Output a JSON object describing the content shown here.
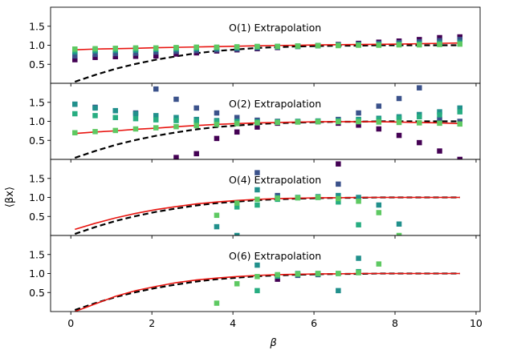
{
  "chart_data": {
    "type": "scatter",
    "xlabel": "β",
    "ylabel": "⟨βx⟩",
    "xlim": [
      -0.5,
      10.1
    ],
    "ylim": [
      0,
      2
    ],
    "xticks": [
      0,
      2,
      4,
      6,
      8,
      10
    ],
    "xtick_labels": [
      "0",
      "2",
      "4",
      "6",
      "8",
      "10"
    ],
    "yticks": [
      0.5,
      1.0,
      1.5
    ],
    "ytick_labels": [
      "0.5",
      "1.0",
      "1.5"
    ],
    "colors": {
      "exact_curve": "#000000",
      "fit_curve": "#e8140f",
      "order_palette": [
        "#440154",
        "#3b528b",
        "#21908c",
        "#27ad81",
        "#5ec962"
      ]
    },
    "series_legend_note": "colored squares: successive approximation orders (dark purple = lowest, light green = highest)",
    "panels": [
      {
        "title": "O(1) Extrapolation",
        "curve": [
          [
            0.1,
            0.88
          ],
          [
            0.6,
            0.9
          ],
          [
            1.1,
            0.91
          ],
          [
            1.6,
            0.92
          ],
          [
            2.1,
            0.935
          ],
          [
            2.6,
            0.945
          ],
          [
            3.1,
            0.955
          ],
          [
            3.6,
            0.965
          ],
          [
            4.1,
            0.975
          ],
          [
            4.6,
            0.985
          ],
          [
            5.1,
            0.995
          ],
          [
            5.6,
            1.0
          ],
          [
            6.1,
            1.01
          ],
          [
            6.6,
            1.015
          ],
          [
            7.1,
            1.02
          ],
          [
            7.6,
            1.025
          ],
          [
            8.1,
            1.03
          ],
          [
            8.6,
            1.04
          ],
          [
            9.1,
            1.05
          ],
          [
            9.6,
            1.06
          ]
        ],
        "points": [
          {
            "x": [
              0.1,
              0.6,
              1.1,
              1.6,
              2.1,
              2.6,
              3.1,
              3.6,
              4.1,
              4.6,
              5.1,
              5.6,
              6.1,
              6.6,
              7.1,
              7.6,
              8.1,
              8.6,
              9.1,
              9.6
            ],
            "y": [
              0.62,
              0.68,
              0.7,
              0.71,
              0.72,
              0.77,
              0.8,
              0.85,
              0.88,
              0.91,
              0.94,
              0.97,
              0.99,
              1.02,
              1.05,
              1.08,
              1.11,
              1.15,
              1.2,
              1.22
            ]
          },
          {
            "x": [
              0.1,
              0.6,
              1.1,
              1.6,
              2.1,
              2.6,
              3.1,
              3.6,
              4.1,
              4.6,
              5.1,
              5.6,
              6.1,
              6.6,
              7.1,
              7.6,
              8.1,
              8.6,
              9.1,
              9.6
            ],
            "y": [
              0.72,
              0.76,
              0.78,
              0.79,
              0.82,
              0.84,
              0.86,
              0.88,
              0.9,
              0.93,
              0.95,
              0.97,
              0.99,
              1.01,
              1.03,
              1.05,
              1.07,
              1.09,
              1.12,
              1.15
            ]
          },
          {
            "x": [
              0.1,
              0.6,
              1.1,
              1.6,
              2.1,
              2.6,
              3.1,
              3.6,
              4.1,
              4.6,
              5.1,
              5.6,
              6.1,
              6.6,
              7.1,
              7.6,
              8.1,
              8.6,
              9.1,
              9.6
            ],
            "y": [
              0.82,
              0.85,
              0.86,
              0.87,
              0.89,
              0.9,
              0.91,
              0.92,
              0.93,
              0.95,
              0.96,
              0.97,
              0.99,
              1.0,
              1.01,
              1.02,
              1.03,
              1.04,
              1.06,
              1.08
            ]
          },
          {
            "x": [
              0.1,
              0.6,
              1.1,
              1.6,
              2.1,
              2.6,
              3.1,
              3.6,
              4.1,
              4.6,
              5.1,
              5.6,
              6.1,
              6.6,
              7.1,
              7.6,
              8.1,
              8.6,
              9.1,
              9.6
            ],
            "y": [
              0.86,
              0.88,
              0.89,
              0.9,
              0.91,
              0.92,
              0.93,
              0.94,
              0.95,
              0.96,
              0.97,
              0.98,
              0.99,
              1.0,
              1.01,
              1.01,
              1.02,
              1.02,
              1.03,
              1.04
            ]
          },
          {
            "x": [
              0.1,
              0.6,
              1.1,
              1.6,
              2.1,
              2.6,
              3.1,
              3.6,
              4.1,
              4.6,
              5.1,
              5.6,
              6.1,
              6.6,
              7.1,
              7.6,
              8.1,
              8.6,
              9.1,
              9.6
            ],
            "y": [
              0.9,
              0.91,
              0.92,
              0.93,
              0.93,
              0.94,
              0.95,
              0.95,
              0.96,
              0.97,
              0.97,
              0.98,
              0.99,
              0.99,
              1.0,
              1.0,
              1.01,
              1.01,
              1.02,
              1.03
            ]
          }
        ]
      },
      {
        "title": "O(2) Extrapolation",
        "curve": [
          [
            0.1,
            0.68
          ],
          [
            0.6,
            0.72
          ],
          [
            1.1,
            0.75
          ],
          [
            1.6,
            0.79
          ],
          [
            2.1,
            0.82
          ],
          [
            2.6,
            0.86
          ],
          [
            3.1,
            0.89
          ],
          [
            3.6,
            0.92
          ],
          [
            4.1,
            0.94
          ],
          [
            4.6,
            0.96
          ],
          [
            5.1,
            0.97
          ],
          [
            5.6,
            0.98
          ],
          [
            6.1,
            0.99
          ],
          [
            6.6,
            0.99
          ],
          [
            7.1,
            0.99
          ],
          [
            7.6,
            0.99
          ],
          [
            8.1,
            0.98
          ],
          [
            8.6,
            0.97
          ],
          [
            9.1,
            0.96
          ],
          [
            9.6,
            0.94
          ]
        ],
        "points": [
          {
            "x": [
              2.6,
              3.1,
              3.6,
              4.1,
              4.6,
              5.1,
              5.6,
              6.1,
              6.6,
              7.1,
              7.6,
              8.1,
              8.6,
              9.1,
              9.6
            ],
            "y": [
              0.05,
              0.15,
              0.55,
              0.72,
              0.85,
              0.95,
              0.99,
              0.99,
              0.95,
              0.9,
              0.8,
              0.63,
              0.44,
              0.22,
              0.0
            ]
          },
          {
            "x": [
              0.1,
              0.6,
              1.1,
              1.6,
              2.1,
              2.6,
              3.1,
              3.6,
              4.1,
              4.6,
              5.1,
              5.6,
              6.1,
              6.6,
              7.1,
              7.6,
              8.1,
              8.6,
              9.1,
              9.6
            ],
            "y": [
              1.45,
              1.37,
              1.28,
              1.22,
              1.85,
              1.58,
              1.35,
              1.22,
              1.1,
              1.03,
              1.0,
              0.99,
              1.0,
              1.05,
              1.22,
              1.4,
              1.6,
              1.88,
              1.05,
              1.0
            ]
          },
          {
            "x": [
              0.1,
              0.6,
              1.1,
              1.6,
              2.1,
              2.6,
              3.1,
              3.6,
              4.1,
              4.6,
              5.1,
              5.6,
              6.1,
              6.6,
              7.1,
              7.6,
              8.1,
              8.6,
              9.1,
              9.6
            ],
            "y": [
              1.45,
              1.35,
              1.28,
              1.2,
              1.15,
              1.1,
              1.05,
              1.02,
              1.0,
              0.99,
              0.99,
              1.0,
              1.01,
              1.02,
              1.05,
              1.08,
              1.12,
              1.18,
              1.25,
              1.35
            ]
          },
          {
            "x": [
              0.1,
              0.6,
              1.1,
              1.6,
              2.1,
              2.6,
              3.1,
              3.6,
              4.1,
              4.6,
              5.1,
              5.6,
              6.1,
              6.6,
              7.1,
              7.6,
              8.1,
              8.6,
              9.1,
              9.6
            ],
            "y": [
              1.2,
              1.15,
              1.1,
              1.07,
              1.04,
              1.02,
              1.0,
              0.99,
              0.98,
              0.98,
              0.98,
              0.99,
              1.0,
              1.01,
              1.03,
              1.05,
              1.08,
              1.12,
              1.17,
              1.25
            ]
          },
          {
            "x": [
              0.1,
              0.6,
              1.1,
              1.6,
              2.1,
              2.6,
              3.1,
              3.6,
              4.1,
              4.6,
              5.1,
              5.6,
              6.1,
              6.6,
              7.1,
              7.6,
              8.1,
              8.6,
              9.1,
              9.6
            ],
            "y": [
              0.7,
              0.73,
              0.76,
              0.8,
              0.83,
              0.86,
              0.89,
              0.92,
              0.94,
              0.96,
              0.97,
              0.98,
              0.99,
              0.99,
              0.99,
              0.98,
              0.97,
              0.96,
              0.95,
              0.93
            ]
          }
        ]
      },
      {
        "title": "O(4) Extrapolation",
        "curve": [
          [
            0.1,
            0.16
          ],
          [
            0.6,
            0.32
          ],
          [
            1.1,
            0.46
          ],
          [
            1.6,
            0.58
          ],
          [
            2.1,
            0.68
          ],
          [
            2.6,
            0.76
          ],
          [
            3.1,
            0.83
          ],
          [
            3.6,
            0.88
          ],
          [
            4.1,
            0.92
          ],
          [
            4.6,
            0.95
          ],
          [
            5.1,
            0.97
          ],
          [
            5.6,
            0.98
          ],
          [
            6.1,
            0.99
          ],
          [
            6.6,
            0.99
          ],
          [
            7.1,
            1.0
          ],
          [
            7.6,
            1.0
          ],
          [
            8.1,
            1.0
          ],
          [
            8.6,
            1.0
          ],
          [
            9.1,
            1.0
          ],
          [
            9.6,
            1.0
          ]
        ],
        "points": [
          {
            "x": [
              6.6
            ],
            "y": [
              1.88
            ]
          },
          {
            "x": [
              4.6,
              5.1,
              6.6
            ],
            "y": [
              1.65,
              1.05,
              1.35
            ]
          },
          {
            "x": [
              3.6,
              4.1,
              4.6,
              5.1,
              5.6,
              6.1,
              6.6,
              7.1,
              7.6,
              8.1
            ],
            "y": [
              0.23,
              0.0,
              1.2,
              1.0,
              1.0,
              1.02,
              1.05,
              1.0,
              0.8,
              0.3
            ]
          },
          {
            "x": [
              4.1,
              4.6,
              5.1,
              5.6,
              6.1,
              6.6,
              7.1
            ],
            "y": [
              0.75,
              0.8,
              0.95,
              0.99,
              1.0,
              0.88,
              0.28
            ]
          },
          {
            "x": [
              3.6,
              4.1,
              4.6,
              5.1,
              5.6,
              6.1,
              6.6,
              7.1,
              7.6,
              8.1
            ],
            "y": [
              0.53,
              0.85,
              0.95,
              0.98,
              0.99,
              1.0,
              0.97,
              0.9,
              0.6,
              0.0
            ]
          }
        ]
      },
      {
        "title": "O(6) Extrapolation",
        "curve": [
          [
            0.1,
            0.0
          ],
          [
            0.6,
            0.2
          ],
          [
            1.1,
            0.4
          ],
          [
            1.6,
            0.55
          ],
          [
            2.1,
            0.66
          ],
          [
            2.6,
            0.76
          ],
          [
            3.1,
            0.83
          ],
          [
            3.6,
            0.88
          ],
          [
            4.1,
            0.92
          ],
          [
            4.6,
            0.95
          ],
          [
            5.1,
            0.97
          ],
          [
            5.6,
            0.98
          ],
          [
            6.1,
            0.99
          ],
          [
            6.6,
            0.99
          ],
          [
            7.1,
            1.0
          ],
          [
            7.6,
            1.0
          ],
          [
            8.1,
            1.0
          ],
          [
            8.6,
            1.0
          ],
          [
            9.1,
            1.0
          ],
          [
            9.6,
            1.0
          ]
        ],
        "points": [
          {
            "x": [
              5.1
            ],
            "y": [
              0.85
            ]
          },
          {
            "x": [
              5.6,
              6.1
            ],
            "y": [
              0.95,
              0.97
            ]
          },
          {
            "x": [
              4.6,
              5.1,
              5.6,
              6.1,
              6.6,
              7.1
            ],
            "y": [
              1.22,
              0.95,
              1.0,
              1.0,
              0.55,
              1.4
            ]
          },
          {
            "x": [
              4.6,
              5.1,
              5.6,
              6.1,
              6.6,
              7.1
            ],
            "y": [
              0.55,
              0.93,
              0.98,
              0.99,
              1.0,
              1.05
            ]
          },
          {
            "x": [
              3.6,
              4.1,
              4.6,
              5.1,
              5.6,
              6.1,
              6.6,
              7.1,
              7.6
            ],
            "y": [
              0.22,
              0.73,
              0.92,
              0.97,
              0.99,
              1.0,
              1.0,
              1.02,
              1.25
            ]
          }
        ]
      }
    ],
    "exact_curve": [
      [
        0.1,
        0.04
      ],
      [
        0.6,
        0.22
      ],
      [
        1.1,
        0.38
      ],
      [
        1.6,
        0.51
      ],
      [
        2.1,
        0.62
      ],
      [
        2.6,
        0.71
      ],
      [
        3.1,
        0.79
      ],
      [
        3.6,
        0.85
      ],
      [
        4.1,
        0.89
      ],
      [
        4.6,
        0.93
      ],
      [
        5.1,
        0.95
      ],
      [
        5.6,
        0.97
      ],
      [
        6.1,
        0.98
      ],
      [
        6.6,
        0.99
      ],
      [
        7.1,
        0.99
      ],
      [
        7.6,
        1.0
      ],
      [
        8.1,
        1.0
      ],
      [
        8.6,
        1.0
      ],
      [
        9.1,
        1.0
      ],
      [
        9.6,
        1.0
      ]
    ]
  }
}
